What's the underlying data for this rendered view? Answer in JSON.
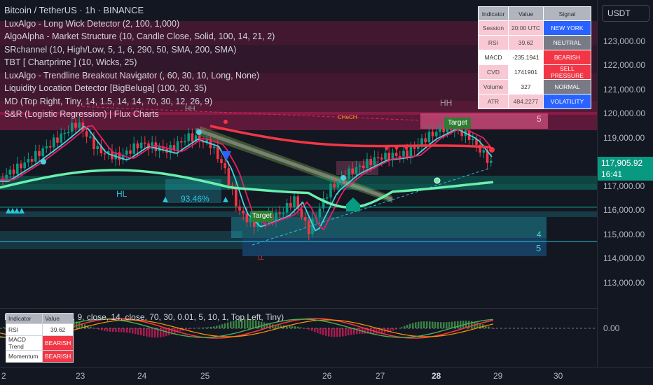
{
  "header": {
    "symbol_title": "Bitcoin / TetherUS · 1h · BINANCE",
    "indicators": [
      "LuxAlgo - Long Wick Detector (2, 100, 1,000)",
      "AlgoAlpha - Market Structure (10, Candle Close, Solid, 100, 14, 21, 2)",
      "SRchannel (10, High/Low, 5, 1, 6, 290, 50, SMA, 200, SMA)",
      "TBT [ Chartprime ] (10, Wicks,   25)",
      "LuxAlgo - Trendline Breakout Navigator (, 60, 30, 10, Long, None)",
      "Liquidity Location Detector [BigBeluga] (100, 20, 35)",
      "MD (Top Right, Tiny, 14, 1.5, 14, 14, 70, 30, 12, 26, 9)",
      "S&R (Logistic Regression) | Flux Charts"
    ]
  },
  "signal_table": {
    "headers": [
      "Indicator",
      "Value",
      "Signal"
    ],
    "rows": [
      {
        "indicator": "Session",
        "value": "20:00 UTC",
        "signal": "NEW YORK",
        "signal_color": "#2962ff"
      },
      {
        "indicator": "RSI",
        "value": "39.62",
        "signal": "NEUTRAL",
        "signal_color": "#787b86"
      },
      {
        "indicator": "MACD",
        "value": "-235.1941",
        "signal": "BEARISH",
        "signal_color": "#f23645"
      },
      {
        "indicator": "CVD",
        "value": "1741901",
        "signal": "SELL PRESSURE",
        "signal_color": "#f23645"
      },
      {
        "indicator": "Volume",
        "value": "327",
        "signal": "NORMAL",
        "signal_color": "#787b86"
      },
      {
        "indicator": "ATR",
        "value": "484.2277",
        "signal": "VOLATILITY",
        "signal_color": "#2962ff"
      }
    ]
  },
  "currency_button": "USDT",
  "price_scale": {
    "ticks": [
      "123,000.00",
      "122,000.00",
      "121,000.00",
      "120,000.00",
      "119,000.00",
      "117,000.00",
      "116,000.00",
      "115,000.00",
      "114,000.00",
      "113,000.00"
    ],
    "last_price": "117,905.92",
    "countdown": "16:41",
    "sub_zero": "0.00"
  },
  "chart_labels": {
    "hh_left": "HH",
    "hh_right": "HH",
    "hl": "HL",
    "ll": "LL",
    "choch": "CHoCH",
    "percent": "93.46%",
    "target_left": "Target",
    "target_right": "Target",
    "zone_5": "5",
    "zone_4": "4",
    "zone_5b": "5"
  },
  "sub_pane": {
    "legend": "M MOS  | ( 1 2, 2 6, 9, close, 14, close, 70, 30, 0.01, 5, 10, 1, Top Left, Tiny)",
    "table": {
      "headers": [
        "Indicator",
        "Value"
      ],
      "rows": [
        {
          "k": "RSI",
          "v": "39.62"
        },
        {
          "k": "MACD Trend",
          "v": "BEARISH"
        },
        {
          "k": "Momentum",
          "v": "BEARISH"
        }
      ]
    }
  },
  "time_axis": {
    "ticks": [
      "2",
      "23",
      "24",
      "25",
      "26",
      "27",
      "28",
      "29",
      "30"
    ]
  },
  "colors": {
    "background": "#131722",
    "bull": "#089981",
    "bear": "#f23645",
    "teal_zone": "#26c6da",
    "pink_zone": "#e91e63"
  }
}
